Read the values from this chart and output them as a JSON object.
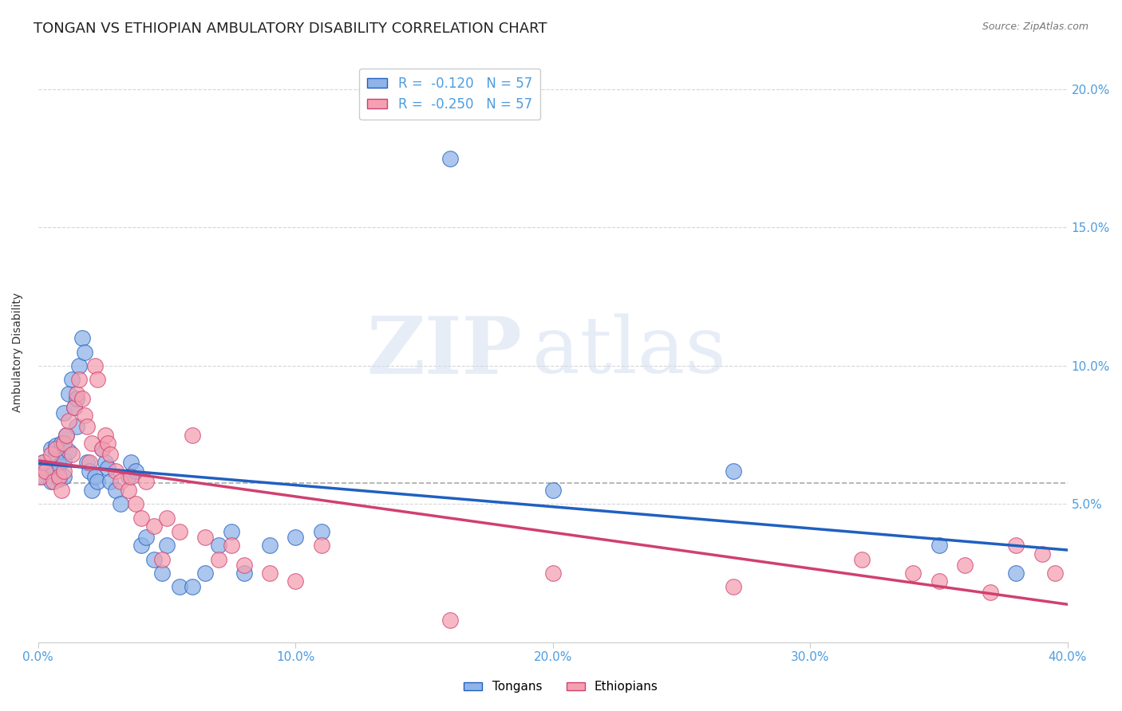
{
  "title": "TONGAN VS ETHIOPIAN AMBULATORY DISABILITY CORRELATION CHART",
  "source": "Source: ZipAtlas.com",
  "ylabel": "Ambulatory Disability",
  "x_min": 0.0,
  "x_max": 0.4,
  "y_min": 0.0,
  "y_max": 0.21,
  "y_ticks": [
    0.05,
    0.1,
    0.15,
    0.2
  ],
  "y_tick_labels": [
    "5.0%",
    "10.0%",
    "15.0%",
    "20.0%"
  ],
  "x_ticks": [
    0.0,
    0.1,
    0.2,
    0.3,
    0.4
  ],
  "x_tick_labels": [
    "0.0%",
    "10.0%",
    "20.0%",
    "30.0%",
    "40.0%"
  ],
  "tongan_color": "#90b4e8",
  "ethiopian_color": "#f4a0b0",
  "tongan_line_color": "#2060c0",
  "ethiopian_line_color": "#d04070",
  "legend_r_tongan": "R =  -0.120   N = 57",
  "legend_r_ethiopian": "R =  -0.250   N = 57",
  "tongan_x": [
    0.001,
    0.002,
    0.003,
    0.005,
    0.005,
    0.006,
    0.007,
    0.007,
    0.008,
    0.008,
    0.009,
    0.01,
    0.01,
    0.01,
    0.011,
    0.012,
    0.012,
    0.013,
    0.014,
    0.015,
    0.015,
    0.016,
    0.017,
    0.018,
    0.019,
    0.02,
    0.021,
    0.022,
    0.023,
    0.025,
    0.026,
    0.027,
    0.028,
    0.03,
    0.032,
    0.035,
    0.036,
    0.038,
    0.04,
    0.042,
    0.045,
    0.048,
    0.05,
    0.055,
    0.06,
    0.065,
    0.07,
    0.075,
    0.08,
    0.09,
    0.1,
    0.11,
    0.16,
    0.2,
    0.27,
    0.35,
    0.38
  ],
  "tongan_y": [
    0.06,
    0.065,
    0.063,
    0.07,
    0.058,
    0.062,
    0.068,
    0.071,
    0.059,
    0.064,
    0.072,
    0.066,
    0.06,
    0.083,
    0.075,
    0.09,
    0.069,
    0.095,
    0.085,
    0.078,
    0.088,
    0.1,
    0.11,
    0.105,
    0.065,
    0.062,
    0.055,
    0.06,
    0.058,
    0.07,
    0.065,
    0.063,
    0.058,
    0.055,
    0.05,
    0.06,
    0.065,
    0.062,
    0.035,
    0.038,
    0.03,
    0.025,
    0.035,
    0.02,
    0.02,
    0.025,
    0.035,
    0.04,
    0.025,
    0.035,
    0.038,
    0.04,
    0.175,
    0.055,
    0.062,
    0.035,
    0.025
  ],
  "ethiopian_x": [
    0.001,
    0.002,
    0.003,
    0.005,
    0.006,
    0.007,
    0.008,
    0.009,
    0.01,
    0.01,
    0.011,
    0.012,
    0.013,
    0.014,
    0.015,
    0.016,
    0.017,
    0.018,
    0.019,
    0.02,
    0.021,
    0.022,
    0.023,
    0.025,
    0.026,
    0.027,
    0.028,
    0.03,
    0.032,
    0.035,
    0.036,
    0.038,
    0.04,
    0.042,
    0.045,
    0.048,
    0.05,
    0.055,
    0.06,
    0.065,
    0.07,
    0.075,
    0.08,
    0.09,
    0.1,
    0.11,
    0.16,
    0.2,
    0.27,
    0.32,
    0.34,
    0.35,
    0.36,
    0.37,
    0.38,
    0.39,
    0.395
  ],
  "ethiopian_y": [
    0.06,
    0.065,
    0.062,
    0.068,
    0.058,
    0.07,
    0.06,
    0.055,
    0.062,
    0.072,
    0.075,
    0.08,
    0.068,
    0.085,
    0.09,
    0.095,
    0.088,
    0.082,
    0.078,
    0.065,
    0.072,
    0.1,
    0.095,
    0.07,
    0.075,
    0.072,
    0.068,
    0.062,
    0.058,
    0.055,
    0.06,
    0.05,
    0.045,
    0.058,
    0.042,
    0.03,
    0.045,
    0.04,
    0.075,
    0.038,
    0.03,
    0.035,
    0.028,
    0.025,
    0.022,
    0.035,
    0.008,
    0.025,
    0.02,
    0.03,
    0.025,
    0.022,
    0.028,
    0.018,
    0.035,
    0.032,
    0.025
  ],
  "watermark_zip": "ZIP",
  "watermark_atlas": "atlas",
  "background_color": "#ffffff",
  "grid_color": "#cccccc",
  "tick_color": "#4d9de0",
  "title_fontsize": 13,
  "axis_label_fontsize": 10,
  "tick_fontsize": 11
}
